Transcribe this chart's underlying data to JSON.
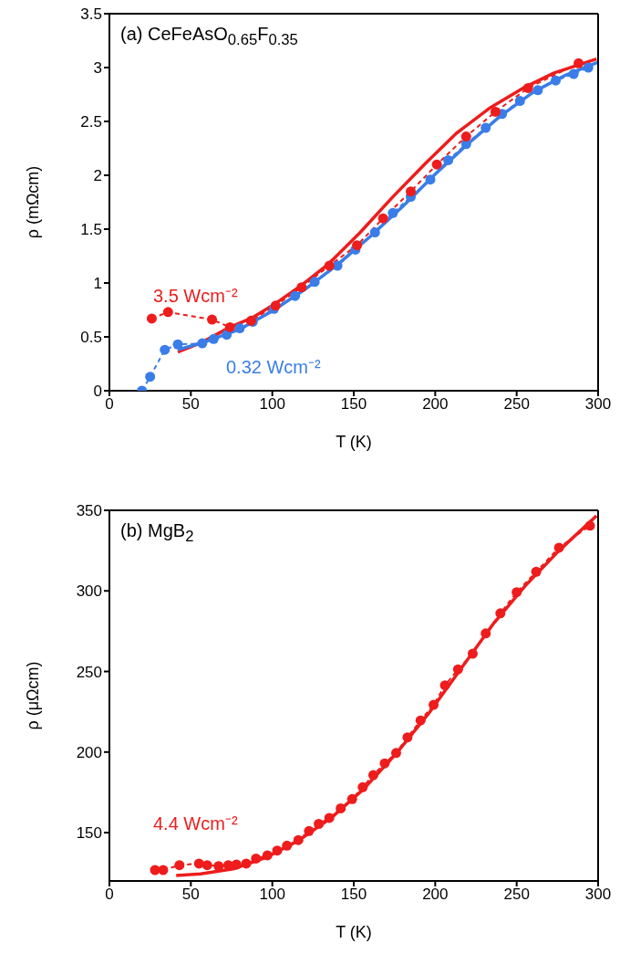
{
  "chart_data": [
    {
      "type": "line",
      "title": "(a) CeFeAsO$_{0.65}$F$_{0.35}$",
      "xlabel": "T (K)",
      "ylabel": "ρ (mΩcm)",
      "xlim": [
        0,
        300
      ],
      "xticks": [
        0,
        50,
        100,
        150,
        200,
        250,
        300
      ],
      "ylim": [
        0,
        3.5
      ],
      "yticks": [
        0,
        0.5,
        1,
        1.5,
        2,
        2.5,
        3,
        3.5
      ],
      "grid": false,
      "annotations": [
        "3.5 Wcm⁻²",
        "0.32 Wcm⁻²"
      ],
      "series": [
        {
          "color": "#ee1c1c",
          "marker": "none",
          "line_style": "solid",
          "x": [
            42,
            57,
            74,
            88,
            102,
            118,
            134,
            154,
            174,
            194,
            213,
            234,
            254,
            273,
            299
          ],
          "values": [
            0.36,
            0.45,
            0.59,
            0.68,
            0.81,
            0.98,
            1.17,
            1.47,
            1.8,
            2.11,
            2.39,
            2.63,
            2.81,
            2.95,
            3.08
          ]
        },
        {
          "color": "#3a7de8",
          "marker": "none",
          "line_style": "solid",
          "x": [
            42,
            60,
            80,
            100,
            120,
            140,
            160,
            180,
            200,
            220,
            240,
            260,
            280,
            300
          ],
          "values": [
            0.38,
            0.46,
            0.57,
            0.74,
            0.94,
            1.17,
            1.43,
            1.71,
            2.01,
            2.29,
            2.55,
            2.77,
            2.93,
            3.05
          ]
        },
        {
          "color": "#3a7de8",
          "marker": "circle",
          "line_style": "dashed",
          "x": [
            20,
            25,
            34,
            42,
            57,
            64,
            72,
            80,
            88,
            101,
            114,
            126,
            140,
            151,
            163,
            174,
            185,
            197,
            208,
            219,
            231,
            241,
            252,
            263,
            274,
            285,
            294
          ],
          "values": [
            0,
            0.13,
            0.38,
            0.43,
            0.44,
            0.48,
            0.52,
            0.58,
            0.64,
            0.76,
            0.88,
            1.01,
            1.16,
            1.31,
            1.47,
            1.65,
            1.8,
            1.96,
            2.14,
            2.29,
            2.44,
            2.57,
            2.69,
            2.79,
            2.88,
            2.94,
            3
          ]
        },
        {
          "color": "#ee1c1c",
          "marker": "circle",
          "line_style": "dashed",
          "x": [
            26,
            36,
            63,
            74,
            87,
            102,
            118,
            135,
            152,
            168,
            185,
            201,
            219,
            237,
            257,
            288
          ],
          "values": [
            0.67,
            0.73,
            0.66,
            0.59,
            0.65,
            0.79,
            0.96,
            1.16,
            1.35,
            1.6,
            1.85,
            2.1,
            2.36,
            2.59,
            2.81,
            3.04
          ]
        }
      ]
    },
    {
      "type": "line",
      "title": "(b) MgB$_{2}$",
      "xlabel": "T (K)",
      "ylabel": "ρ (μΩcm)",
      "xlim": [
        0,
        300
      ],
      "xticks": [
        0,
        50,
        100,
        150,
        200,
        250,
        300
      ],
      "ylim": [
        120,
        350
      ],
      "yticks": [
        150,
        200,
        250,
        300,
        350
      ],
      "grid": false,
      "annotations": [
        "4.4 Wcm⁻²"
      ],
      "series": [
        {
          "color": "#ee1c1c",
          "marker": "none",
          "line_style": "solid",
          "x": [
            41,
            56,
            76,
            96,
            116,
            136,
            156,
            176,
            196,
            216,
            236,
            256,
            276,
            299
          ],
          "values": [
            123.4,
            124.4,
            127.5,
            134.5,
            145,
            159,
            177,
            199,
            224,
            252,
            280,
            304,
            325,
            346.6
          ]
        },
        {
          "color": "#ee1c1c",
          "marker": "circle",
          "line_style": "dashed",
          "x": [
            28,
            33,
            43,
            55,
            60,
            67,
            73,
            78,
            84,
            90,
            97,
            103,
            109,
            116,
            122.5,
            128.5,
            135,
            142,
            149,
            155.5,
            162,
            169,
            176,
            183,
            191,
            199,
            206,
            214,
            223,
            231,
            240,
            250,
            262,
            276,
            295
          ],
          "values": [
            126.8,
            126.8,
            129.8,
            130.8,
            129.8,
            129.2,
            129.8,
            130.2,
            130.8,
            133.9,
            135.9,
            138.9,
            141.9,
            145.4,
            151,
            155.4,
            159.1,
            165.1,
            170.8,
            178.2,
            185.7,
            193,
            199.4,
            209.1,
            219.6,
            229.3,
            241.4,
            251.3,
            261,
            273.6,
            286.1,
            299.2,
            311.9,
            326.8,
            340.5
          ]
        }
      ]
    }
  ]
}
